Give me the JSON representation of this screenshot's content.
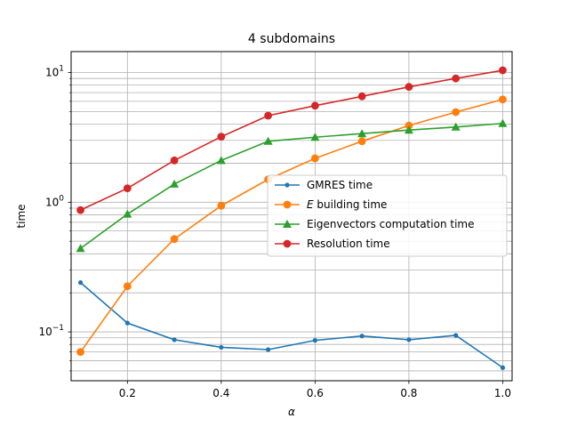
{
  "chart_data": {
    "type": "line",
    "title": "4 subdomains",
    "xlabel": "α",
    "ylabel": "time",
    "yscale": "log",
    "xlim": [
      0.08,
      1.02
    ],
    "ylim": [
      0.042,
      14.5
    ],
    "grid": true,
    "legend_placement": "center-right",
    "x": [
      0.1,
      0.2,
      0.3,
      0.4,
      0.5,
      0.6,
      0.7,
      0.8,
      0.9,
      1.0
    ],
    "x_ticks": [
      0.2,
      0.4,
      0.6,
      0.8,
      1.0
    ],
    "x_tick_labels": [
      "0.2",
      "0.4",
      "0.6",
      "0.8",
      "1.0"
    ],
    "y_major_ticks": [
      0.1,
      1,
      10
    ],
    "y_tick_labels": [
      {
        "base": "10",
        "exp": "−1"
      },
      {
        "base": "10",
        "exp": "0"
      },
      {
        "base": "10",
        "exp": "1"
      }
    ],
    "series": [
      {
        "name": "GMRES time",
        "color": "#1f77b4",
        "marker": "dot",
        "values": [
          0.24,
          0.117,
          0.087,
          0.076,
          0.073,
          0.086,
          0.093,
          0.087,
          0.094,
          0.053
        ]
      },
      {
        "name": "E building time",
        "name_italic": "E",
        "name_rest": " building time",
        "color": "#ff7f0e",
        "marker": "circle",
        "values": [
          0.07,
          0.225,
          0.52,
          0.94,
          1.5,
          2.18,
          2.95,
          3.9,
          4.95,
          6.2
        ]
      },
      {
        "name": "Eigenvectors computation time",
        "color": "#2ca02c",
        "marker": "triangle",
        "values": [
          0.44,
          0.81,
          1.38,
          2.1,
          2.95,
          3.17,
          3.38,
          3.6,
          3.8,
          4.05
        ]
      },
      {
        "name": "Resolution time",
        "color": "#d62728",
        "marker": "circle",
        "values": [
          0.87,
          1.28,
          2.1,
          3.2,
          4.65,
          5.55,
          6.55,
          7.75,
          9.0,
          10.4
        ]
      }
    ]
  }
}
